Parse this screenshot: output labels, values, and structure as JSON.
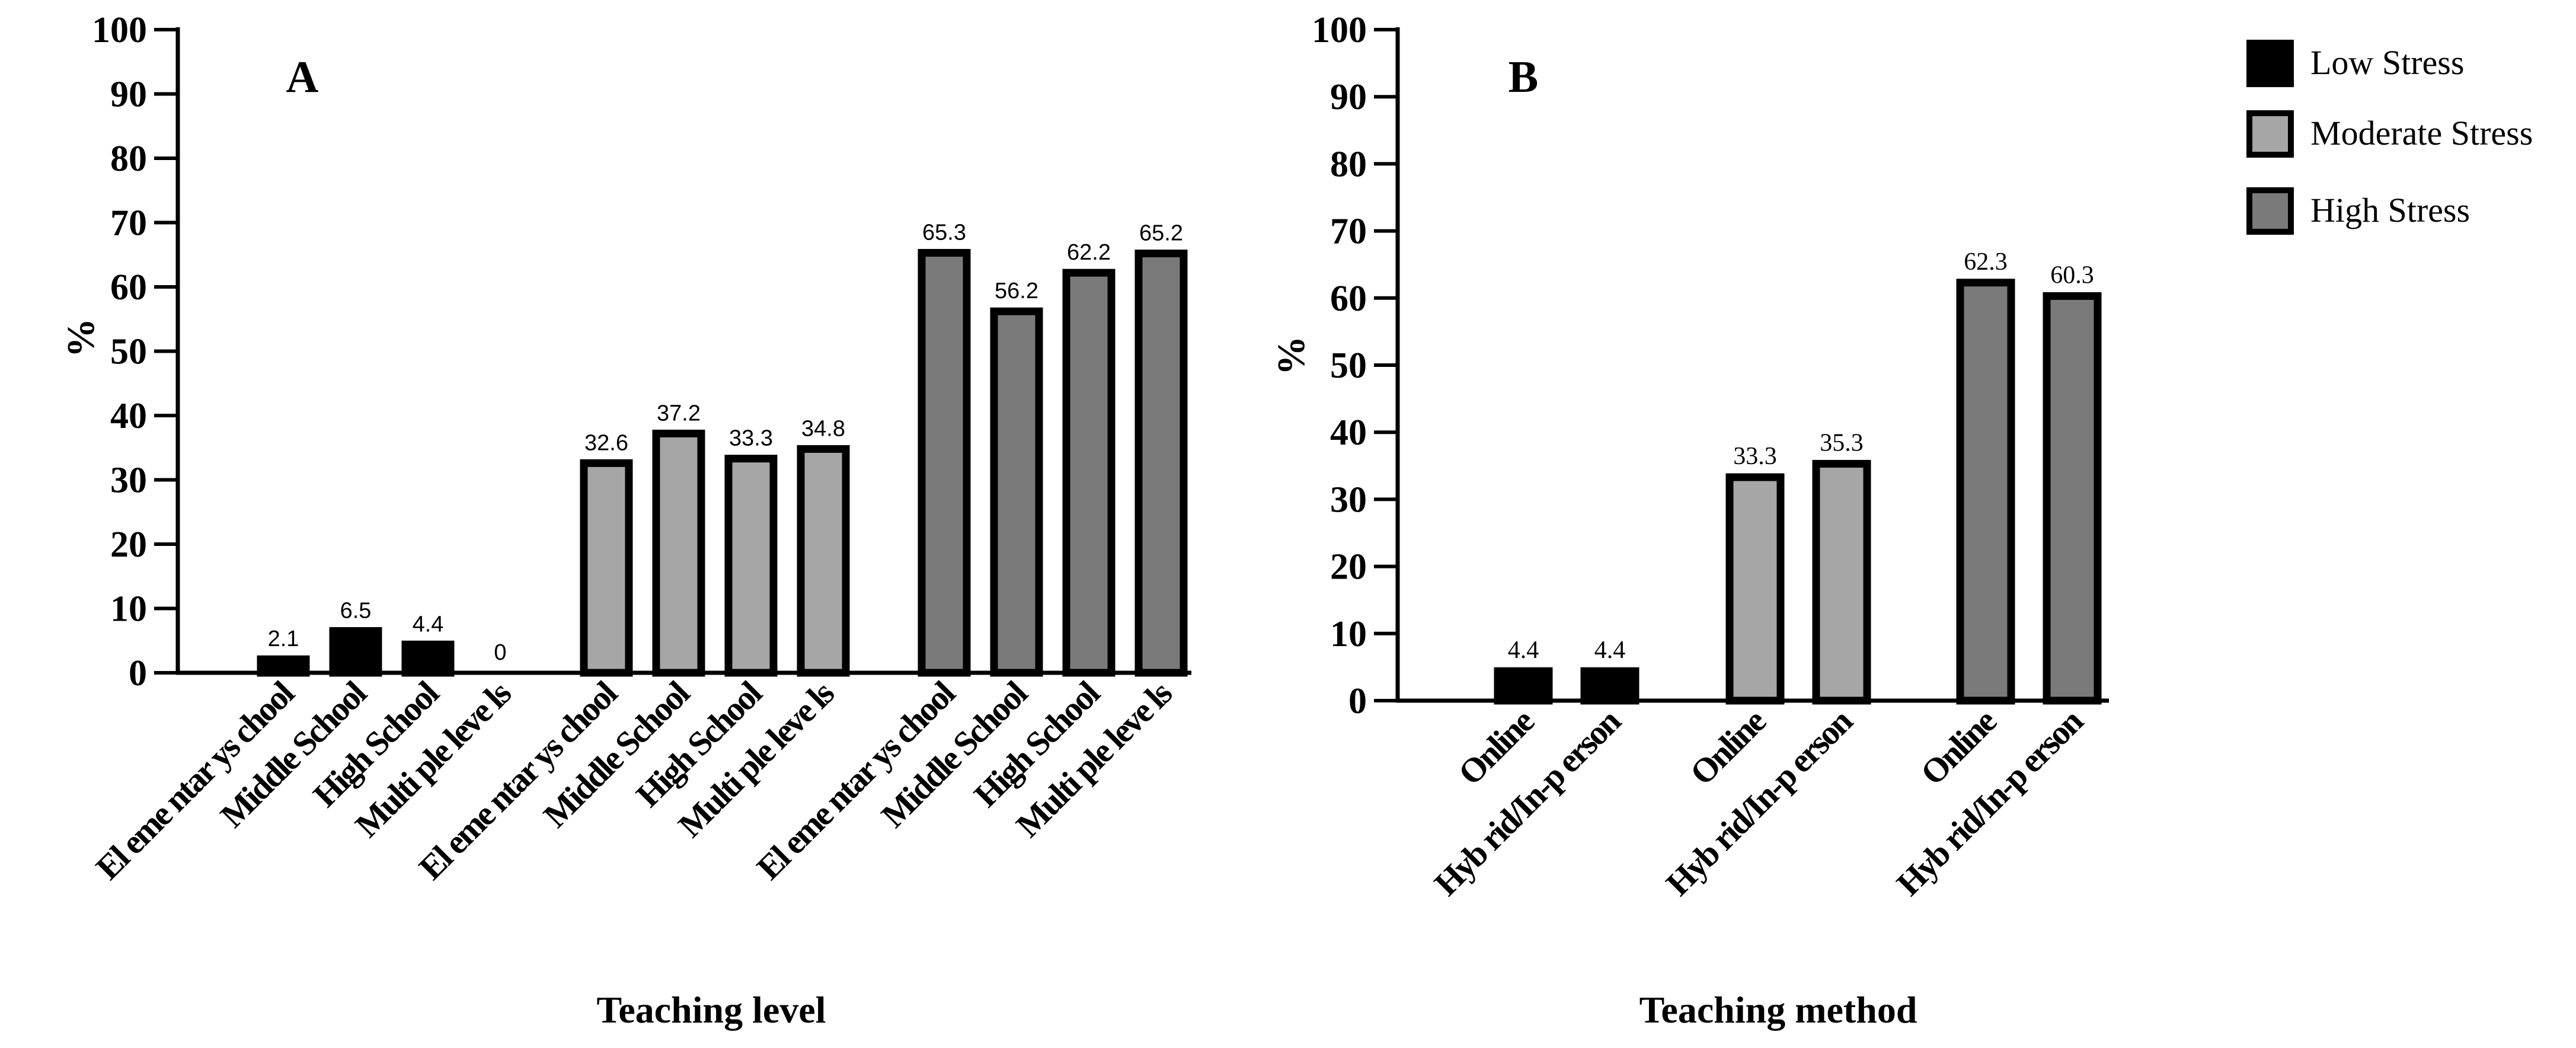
{
  "chart_data": [
    {
      "type": "bar",
      "panel_label": "A",
      "title": "",
      "xlabel": "Teaching level",
      "ylabel": "%",
      "ylim": [
        0,
        100
      ],
      "yticks": [
        "0",
        "10",
        "20",
        "30",
        "40",
        "50",
        "60",
        "70",
        "80",
        "90",
        "100"
      ],
      "categories": [
        "El eme ntar ys chool",
        "Middle School",
        "High School",
        "Multi ple leve ls"
      ],
      "series": [
        {
          "name": "Low Stress",
          "values": [
            2.1,
            6.5,
            4.4,
            0
          ],
          "labels": [
            "2.1",
            "6.5",
            "4.4",
            "0"
          ]
        },
        {
          "name": "Moderate Stress",
          "values": [
            32.6,
            37.2,
            33.3,
            34.8
          ],
          "labels": [
            "32.6",
            "37.2",
            "33.3",
            "34.8"
          ]
        },
        {
          "name": "High Stress",
          "values": [
            65.3,
            56.2,
            62.2,
            65.2
          ],
          "labels": [
            "65.3",
            "56.2",
            "62.2",
            "65.2"
          ]
        }
      ]
    },
    {
      "type": "bar",
      "panel_label": "B",
      "title": "",
      "xlabel": "Teaching method",
      "ylabel": "%",
      "ylim": [
        0,
        100
      ],
      "yticks": [
        "0",
        "10",
        "20",
        "30",
        "40",
        "50",
        "60",
        "70",
        "80",
        "90",
        "100"
      ],
      "categories": [
        "Online",
        "Hyb rid/In-p erson"
      ],
      "series": [
        {
          "name": "Low Stress",
          "values": [
            4.4,
            4.4
          ],
          "labels": [
            "4.4",
            "4.4"
          ]
        },
        {
          "name": "Moderate Stress",
          "values": [
            33.3,
            35.3
          ],
          "labels": [
            "33.3",
            "35.3"
          ]
        },
        {
          "name": "High Stress",
          "values": [
            62.3,
            60.3
          ],
          "labels": [
            "62.3",
            "60.3"
          ]
        }
      ]
    }
  ],
  "legend": {
    "position": "top-right",
    "items": [
      {
        "label": "Low Stress",
        "color": "#000000"
      },
      {
        "label": "Moderate Stress",
        "color": "#a6a6a6"
      },
      {
        "label": "High Stress",
        "color": "#7a7a7a"
      }
    ]
  },
  "colors": {
    "low": "#000000",
    "moderate": "#a6a6a6",
    "high": "#7a7a7a",
    "outline": "#000000"
  }
}
